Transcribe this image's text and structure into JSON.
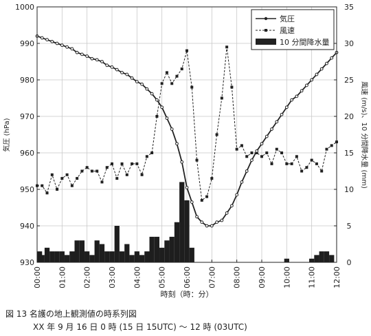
{
  "caption": {
    "line1": "図 13  名護の地上観測値の時系列図",
    "line2": "XX 年 9 月 16 日 0 時 (15 日 15UTC) ～ 12 時 (03UTC)"
  },
  "chart_data": {
    "type": "line",
    "xlabel": "時刻（時：分）",
    "ylabel_left": "気圧 (hPa)",
    "ylabel_right": "風速 (m/s)、10 分間降水量 (mm)",
    "xlim": [
      0,
      12
    ],
    "ylim_left": [
      930,
      1000
    ],
    "ylim_right": [
      0,
      35
    ],
    "x_ticks": [
      "00:00",
      "01:00",
      "02:00",
      "03:00",
      "04:00",
      "05:00",
      "06:00",
      "07:00",
      "08:00",
      "09:00",
      "10:00",
      "11:00",
      "12:00"
    ],
    "y_left_ticks": [
      930,
      940,
      950,
      960,
      970,
      980,
      990,
      1000
    ],
    "y_right_ticks": [
      0,
      5,
      10,
      15,
      20,
      25,
      30,
      35
    ],
    "legend": {
      "position": "top-right",
      "entries": [
        "気圧",
        "風速",
        "10 分間降水量"
      ]
    },
    "series": [
      {
        "name": "気圧",
        "axis": "left",
        "style": "solid-dot",
        "x": [
          0.0,
          0.2,
          0.4,
          0.6,
          0.8,
          1.0,
          1.2,
          1.4,
          1.6,
          1.8,
          2.0,
          2.2,
          2.4,
          2.6,
          2.8,
          3.0,
          3.2,
          3.4,
          3.6,
          3.8,
          4.0,
          4.2,
          4.4,
          4.6,
          4.8,
          5.0,
          5.2,
          5.4,
          5.6,
          5.8,
          6.0,
          6.2,
          6.4,
          6.6,
          6.8,
          7.0,
          7.2,
          7.4,
          7.6,
          7.8,
          8.0,
          8.2,
          8.4,
          8.6,
          8.8,
          9.0,
          9.2,
          9.4,
          9.6,
          9.8,
          10.0,
          10.2,
          10.4,
          10.6,
          10.8,
          11.0,
          11.2,
          11.4,
          11.6,
          11.8,
          12.0
        ],
        "y": [
          992.0,
          991.5,
          991.0,
          990.5,
          990.0,
          989.5,
          989.0,
          988.5,
          987.5,
          987.0,
          986.5,
          985.8,
          985.5,
          985.0,
          984.0,
          983.5,
          982.8,
          982.0,
          981.5,
          980.5,
          979.5,
          978.8,
          977.5,
          976.2,
          974.5,
          972.5,
          969.5,
          966.5,
          962.5,
          957.5,
          950.5,
          946.5,
          942.5,
          941.0,
          940.0,
          940.0,
          941.0,
          941.5,
          943.5,
          945.5,
          948.5,
          952.0,
          955.0,
          958.0,
          960.5,
          962.5,
          964.5,
          966.5,
          968.5,
          970.5,
          972.5,
          974.5,
          975.5,
          977.0,
          978.5,
          980.0,
          981.5,
          983.0,
          984.5,
          986.0,
          987.5
        ]
      },
      {
        "name": "風速",
        "axis": "right",
        "style": "dashed-square",
        "x": [
          0.0,
          0.2,
          0.4,
          0.6,
          0.8,
          1.0,
          1.2,
          1.4,
          1.6,
          1.8,
          2.0,
          2.2,
          2.4,
          2.6,
          2.8,
          3.0,
          3.2,
          3.4,
          3.6,
          3.8,
          4.0,
          4.2,
          4.4,
          4.6,
          4.8,
          5.0,
          5.2,
          5.4,
          5.6,
          5.8,
          6.0,
          6.2,
          6.4,
          6.6,
          6.8,
          7.0,
          7.2,
          7.4,
          7.6,
          7.8,
          8.0,
          8.2,
          8.4,
          8.6,
          8.8,
          9.0,
          9.2,
          9.4,
          9.6,
          9.8,
          10.0,
          10.2,
          10.4,
          10.6,
          10.8,
          11.0,
          11.2,
          11.4,
          11.6,
          11.8,
          12.0
        ],
        "y": [
          10.5,
          10.5,
          9.5,
          12.0,
          10.0,
          11.5,
          12.0,
          10.5,
          11.5,
          12.5,
          13.0,
          12.5,
          12.5,
          11.0,
          13.0,
          13.5,
          11.5,
          13.5,
          12.0,
          13.5,
          13.5,
          12.0,
          14.5,
          15.0,
          20.0,
          24.5,
          26.0,
          24.5,
          25.5,
          26.5,
          29.0,
          24.0,
          14.0,
          8.5,
          9.0,
          11.5,
          17.5,
          22.5,
          29.5,
          24.0,
          15.5,
          16.0,
          14.5,
          15.0,
          15.0,
          14.5,
          15.0,
          13.5,
          15.5,
          15.0,
          13.5,
          13.5,
          14.5,
          12.5,
          13.0,
          14.0,
          13.5,
          12.5,
          15.5,
          16.0,
          16.5
        ]
      },
      {
        "name": "10 分間降水量",
        "axis": "right",
        "style": "bar",
        "x": [
          0.0,
          0.2,
          0.4,
          0.6,
          0.8,
          1.0,
          1.2,
          1.4,
          1.6,
          1.8,
          2.0,
          2.2,
          2.4,
          2.6,
          2.8,
          3.0,
          3.2,
          3.4,
          3.6,
          3.8,
          4.0,
          4.2,
          4.4,
          4.6,
          4.8,
          5.0,
          5.2,
          5.4,
          5.6,
          5.8,
          6.0,
          6.2,
          6.4,
          6.6,
          6.8,
          7.0,
          7.2,
          7.4,
          7.6,
          7.8,
          8.0,
          8.2,
          8.4,
          8.6,
          8.8,
          9.0,
          9.2,
          9.4,
          9.6,
          9.8,
          10.0,
          10.2,
          10.4,
          10.6,
          10.8,
          11.0,
          11.2,
          11.4,
          11.6,
          11.8,
          12.0
        ],
        "y": [
          1.5,
          1.0,
          2.0,
          1.5,
          1.5,
          1.5,
          1.0,
          1.5,
          3.0,
          3.0,
          1.5,
          1.0,
          3.0,
          2.5,
          1.5,
          1.5,
          5.0,
          1.5,
          2.5,
          1.0,
          1.5,
          1.0,
          1.5,
          3.5,
          3.5,
          2.0,
          3.0,
          3.5,
          5.5,
          11.0,
          8.5,
          2.0,
          0,
          0,
          0,
          0,
          0,
          0,
          0,
          0,
          0,
          0,
          0,
          0,
          0,
          0,
          0,
          0,
          0,
          0,
          0.5,
          0,
          0,
          0,
          0,
          0.5,
          1.0,
          1.5,
          1.5,
          1.0,
          0
        ]
      }
    ]
  }
}
